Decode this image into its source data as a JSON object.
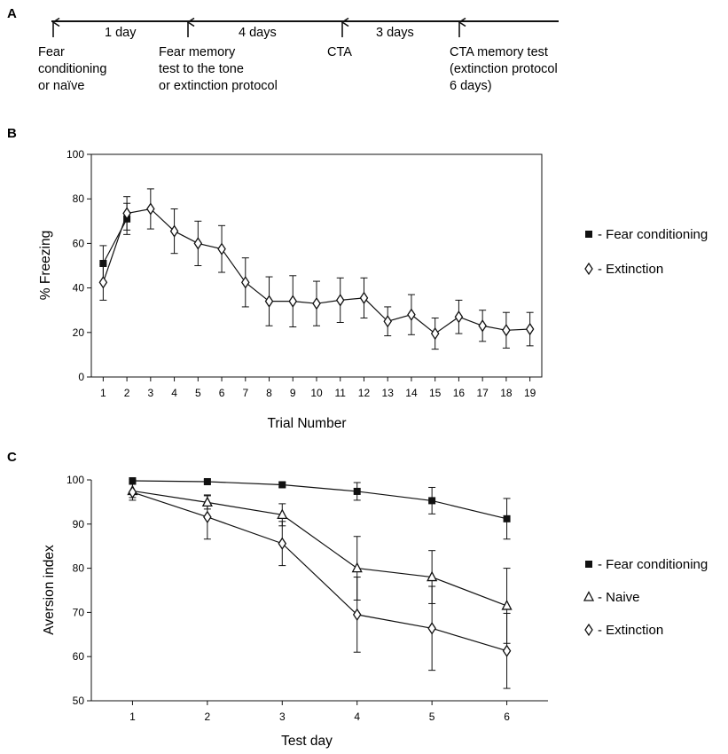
{
  "panel_a": {
    "letter": "A",
    "intervals": [
      "1 day",
      "4 days",
      "3 days"
    ],
    "events": [
      [
        "Fear",
        "conditioning",
        "or naïve"
      ],
      [
        "Fear memory",
        "test to the tone",
        "or extinction protocol"
      ],
      [
        "CTA"
      ],
      [
        "CTA memory test",
        "(extinction protocol",
        "6 days)"
      ]
    ]
  },
  "chart_data": [
    {
      "panel": "B",
      "type": "line",
      "title": "",
      "xlabel": "Trial Number",
      "ylabel": "% Freezing",
      "x": [
        1,
        2,
        3,
        4,
        5,
        6,
        7,
        8,
        9,
        10,
        11,
        12,
        13,
        14,
        15,
        16,
        17,
        18,
        19
      ],
      "xlim": [
        0.5,
        19.5
      ],
      "ylim": [
        0,
        100
      ],
      "yticks": [
        0,
        20,
        40,
        60,
        80,
        100
      ],
      "grid": false,
      "legend_position": "right",
      "series": [
        {
          "name": "Fear conditioning",
          "legend_label": "- Fear conditioning",
          "marker": "square-filled",
          "x": [
            1,
            2
          ],
          "values": [
            51,
            71
          ],
          "errors": [
            8,
            7
          ]
        },
        {
          "name": "Extinction",
          "legend_label": "- Extinction",
          "marker": "diamond-open",
          "x": [
            1,
            2,
            3,
            4,
            5,
            6,
            7,
            8,
            9,
            10,
            11,
            12,
            13,
            14,
            15,
            16,
            17,
            18,
            19
          ],
          "values": [
            42.5,
            73.5,
            75.5,
            65.5,
            60,
            57.5,
            42.5,
            34,
            34,
            33,
            34.5,
            35.5,
            25,
            28,
            19.5,
            27,
            23,
            21,
            21.5
          ],
          "errors": [
            8,
            7.5,
            9,
            10,
            10,
            10.5,
            11,
            11,
            11.5,
            10,
            10,
            9,
            6.5,
            9,
            7,
            7.5,
            7,
            8,
            7.5
          ]
        }
      ]
    },
    {
      "panel": "C",
      "type": "line",
      "title": "",
      "xlabel": "Test day",
      "ylabel": "Aversion index",
      "x": [
        1,
        2,
        3,
        4,
        5,
        6
      ],
      "xlim": [
        0.45,
        6.55
      ],
      "ylim": [
        50,
        100
      ],
      "yticks": [
        50,
        60,
        70,
        80,
        90,
        100
      ],
      "grid": false,
      "legend_position": "right",
      "series": [
        {
          "name": "Fear conditioning",
          "legend_label": "- Fear conditioning",
          "marker": "square-filled",
          "x": [
            1,
            2,
            3,
            4,
            5,
            6
          ],
          "values": [
            99.8,
            99.6,
            98.9,
            97.4,
            95.3,
            91.2
          ],
          "errors": [
            0.3,
            0.4,
            0.5,
            2,
            3,
            4.6
          ]
        },
        {
          "name": "Naive",
          "legend_label": "- Naive",
          "marker": "triangle-open",
          "x": [
            1,
            2,
            3,
            4,
            5,
            6
          ],
          "values": [
            97.5,
            94.9,
            92.1,
            80,
            78,
            71.5
          ],
          "errors": [
            1.5,
            1.5,
            2.5,
            7.2,
            6,
            8.5
          ]
        },
        {
          "name": "Extinction",
          "legend_label": "- Extinction",
          "marker": "diamond-open",
          "x": [
            1,
            2,
            3,
            4,
            5,
            6
          ],
          "values": [
            97.2,
            91.6,
            85.6,
            69.5,
            66.4,
            61.3
          ],
          "errors": [
            1.8,
            5,
            5,
            8.5,
            9.5,
            8.5
          ]
        }
      ]
    }
  ]
}
